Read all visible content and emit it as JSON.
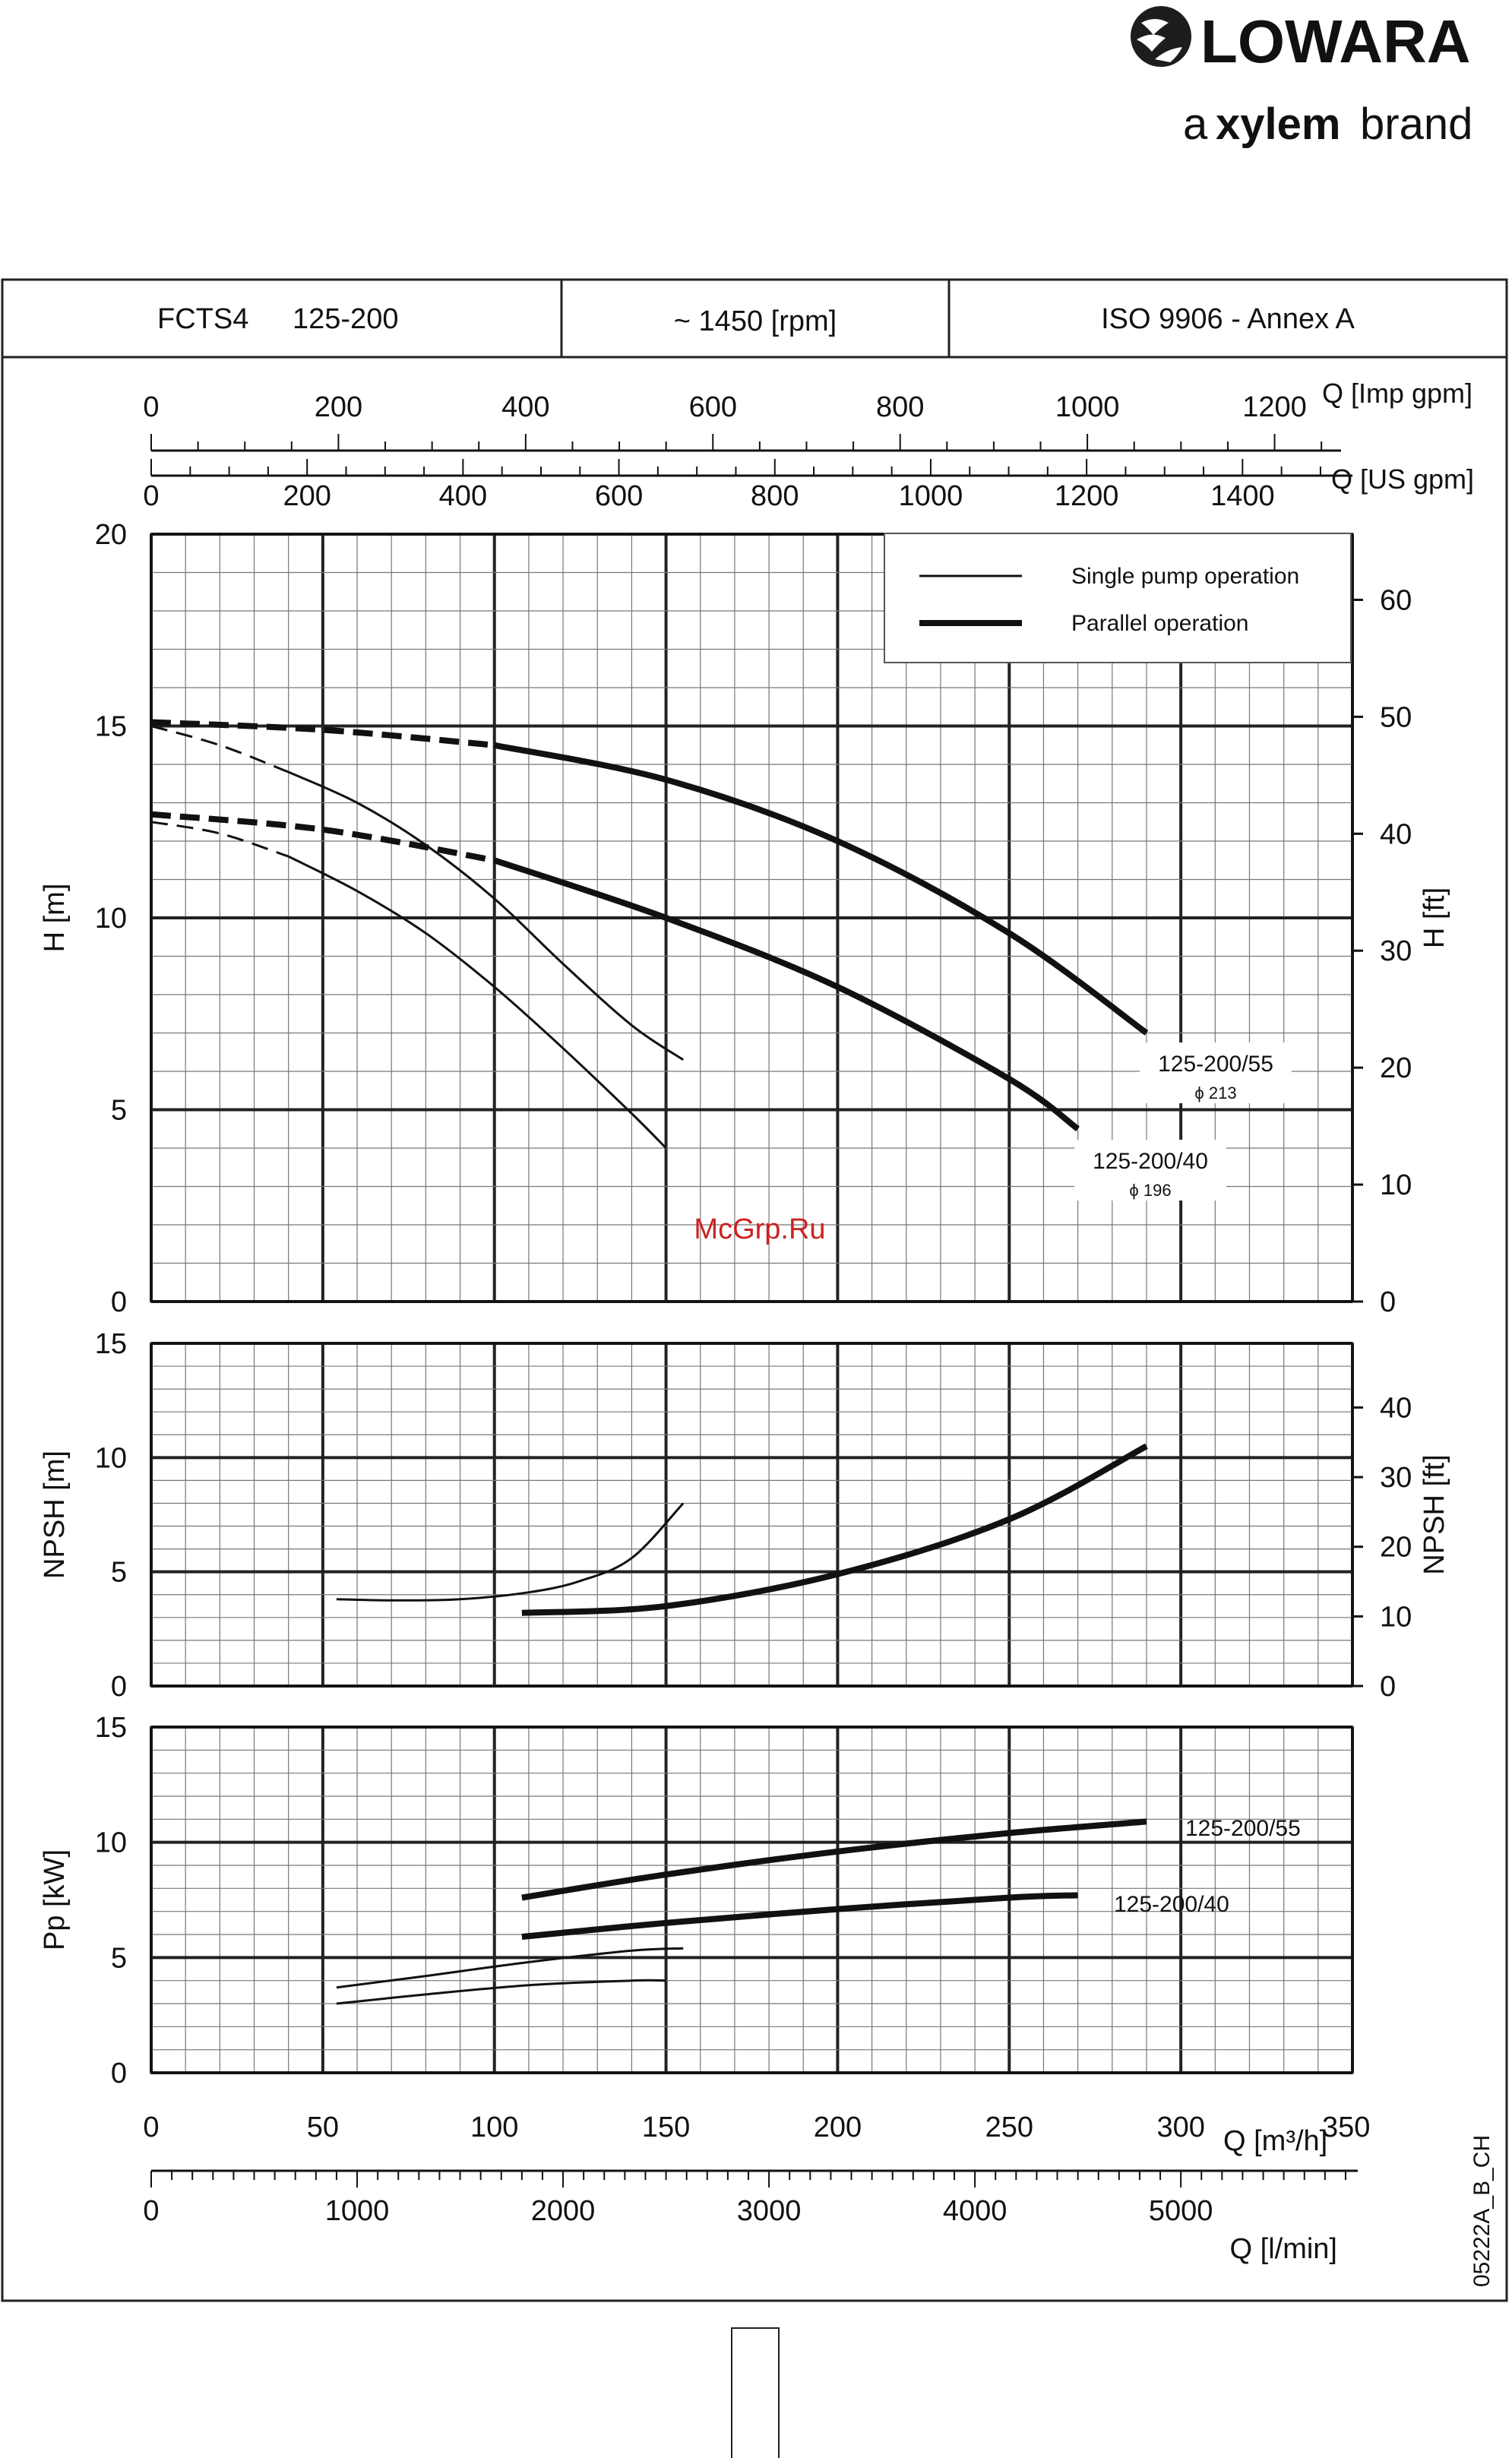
{
  "brand": {
    "name": "LOWARA",
    "tagline_prefix": "a",
    "tagline_brand": "xylem",
    "tagline_suffix": "brand",
    "color": "#1d1d1b"
  },
  "header": {
    "model": "FCTS4",
    "size": "125-200",
    "speed": "~ 1450 [rpm]",
    "standard": "ISO 9906 - Annex A"
  },
  "axes": {
    "imp_label": "Q [Imp gpm]",
    "imp_ticks": [
      "0",
      "200",
      "400",
      "600",
      "800",
      "1000",
      "1200"
    ],
    "us_label": "Q [US gpm]",
    "us_ticks": [
      "0",
      "200",
      "400",
      "600",
      "800",
      "1000",
      "1200",
      "1400"
    ],
    "m3h_label": "Q [m³/h]",
    "m3h_ticks": [
      "0",
      "50",
      "100",
      "150",
      "200",
      "250",
      "300",
      "350"
    ],
    "lmin_label": "Q [l/min]",
    "lmin_ticks": [
      "0",
      "1000",
      "2000",
      "3000",
      "4000",
      "5000"
    ]
  },
  "legend": {
    "single": "Single pump operation",
    "parallel": "Parallel operation"
  },
  "watermark": "McGrp.Ru",
  "code": "05222A_B_CH",
  "chart_data": [
    {
      "type": "line",
      "panel": "head",
      "x_unit": "m3/h",
      "xlim": [
        0,
        350
      ],
      "ylabel": "H [m]",
      "ylim": [
        0,
        20
      ],
      "yticks": [
        "0",
        "5",
        "10",
        "15",
        "20"
      ],
      "ylabel_right": "H [ft]",
      "yticks_right": [
        "0",
        "10",
        "20",
        "30",
        "40",
        "50",
        "60"
      ],
      "grid": true,
      "legend_position": "top-right",
      "series": [
        {
          "curve": "125-200/55",
          "mode": "single",
          "dashed_until": 55,
          "points": [
            [
              0,
              15.0
            ],
            [
              20,
              14.5
            ],
            [
              40,
              13.8
            ],
            [
              60,
              13.0
            ],
            [
              80,
              11.9
            ],
            [
              100,
              10.5
            ],
            [
              120,
              8.8
            ],
            [
              140,
              7.2
            ],
            [
              155,
              6.3
            ]
          ]
        },
        {
          "curve": "125-200/40",
          "mode": "single",
          "dashed_until": 50,
          "points": [
            [
              0,
              12.5
            ],
            [
              20,
              12.2
            ],
            [
              40,
              11.6
            ],
            [
              60,
              10.7
            ],
            [
              80,
              9.6
            ],
            [
              100,
              8.2
            ],
            [
              120,
              6.6
            ],
            [
              140,
              4.9
            ],
            [
              150,
              4.0
            ]
          ]
        },
        {
          "curve": "125-200/55",
          "mode": "parallel",
          "dashed_until": 110,
          "points": [
            [
              0,
              15.1
            ],
            [
              50,
              14.9
            ],
            [
              100,
              14.5
            ],
            [
              150,
              13.6
            ],
            [
              200,
              12.0
            ],
            [
              250,
              9.6
            ],
            [
              290,
              7.0
            ]
          ]
        },
        {
          "curve": "125-200/40",
          "mode": "parallel",
          "dashed_until": 105,
          "points": [
            [
              0,
              12.7
            ],
            [
              50,
              12.3
            ],
            [
              100,
              11.5
            ],
            [
              150,
              10.0
            ],
            [
              200,
              8.2
            ],
            [
              250,
              5.8
            ],
            [
              270,
              4.5
            ]
          ]
        }
      ],
      "annotations": [
        {
          "text": "125-200/55",
          "sub": "ϕ 213"
        },
        {
          "text": "125-200/40",
          "sub": "ϕ 196"
        }
      ]
    },
    {
      "type": "line",
      "panel": "npsh",
      "x_unit": "m3/h",
      "xlim": [
        0,
        350
      ],
      "ylabel": "NPSH [m]",
      "ylim": [
        0,
        15
      ],
      "yticks": [
        "0",
        "5",
        "10",
        "15"
      ],
      "ylabel_right": "NPSH [ft]",
      "yticks_right": [
        "0",
        "10",
        "20",
        "30",
        "40"
      ],
      "grid": true,
      "series": [
        {
          "mode": "single",
          "points": [
            [
              54,
              3.8
            ],
            [
              70,
              3.75
            ],
            [
              90,
              3.8
            ],
            [
              110,
              4.1
            ],
            [
              125,
              4.6
            ],
            [
              140,
              5.6
            ],
            [
              155,
              8.0
            ]
          ]
        },
        {
          "mode": "parallel",
          "points": [
            [
              108,
              3.2
            ],
            [
              150,
              3.5
            ],
            [
              200,
              4.9
            ],
            [
              250,
              7.3
            ],
            [
              290,
              10.5
            ]
          ]
        }
      ]
    },
    {
      "type": "line",
      "panel": "power",
      "x_unit": "m3/h",
      "xlim": [
        0,
        350
      ],
      "ylabel": "Pp [kW]",
      "ylim": [
        0,
        15
      ],
      "yticks": [
        "0",
        "5",
        "10",
        "15"
      ],
      "grid": true,
      "series": [
        {
          "curve": "125-200/55",
          "mode": "single",
          "points": [
            [
              54,
              3.7
            ],
            [
              80,
              4.2
            ],
            [
              110,
              4.8
            ],
            [
              140,
              5.3
            ],
            [
              155,
              5.4
            ]
          ]
        },
        {
          "curve": "125-200/40",
          "mode": "single",
          "points": [
            [
              54,
              3.0
            ],
            [
              80,
              3.4
            ],
            [
              110,
              3.8
            ],
            [
              140,
              4.0
            ],
            [
              150,
              4.0
            ]
          ]
        },
        {
          "curve": "125-200/55",
          "mode": "parallel",
          "points": [
            [
              108,
              7.6
            ],
            [
              150,
              8.6
            ],
            [
              200,
              9.6
            ],
            [
              250,
              10.4
            ],
            [
              290,
              10.9
            ]
          ]
        },
        {
          "curve": "125-200/40",
          "mode": "parallel",
          "points": [
            [
              108,
              5.9
            ],
            [
              150,
              6.5
            ],
            [
              200,
              7.1
            ],
            [
              250,
              7.6
            ],
            [
              270,
              7.7
            ]
          ]
        }
      ],
      "annotations": [
        {
          "text": "125-200/55"
        },
        {
          "text": "125-200/40"
        }
      ]
    }
  ]
}
